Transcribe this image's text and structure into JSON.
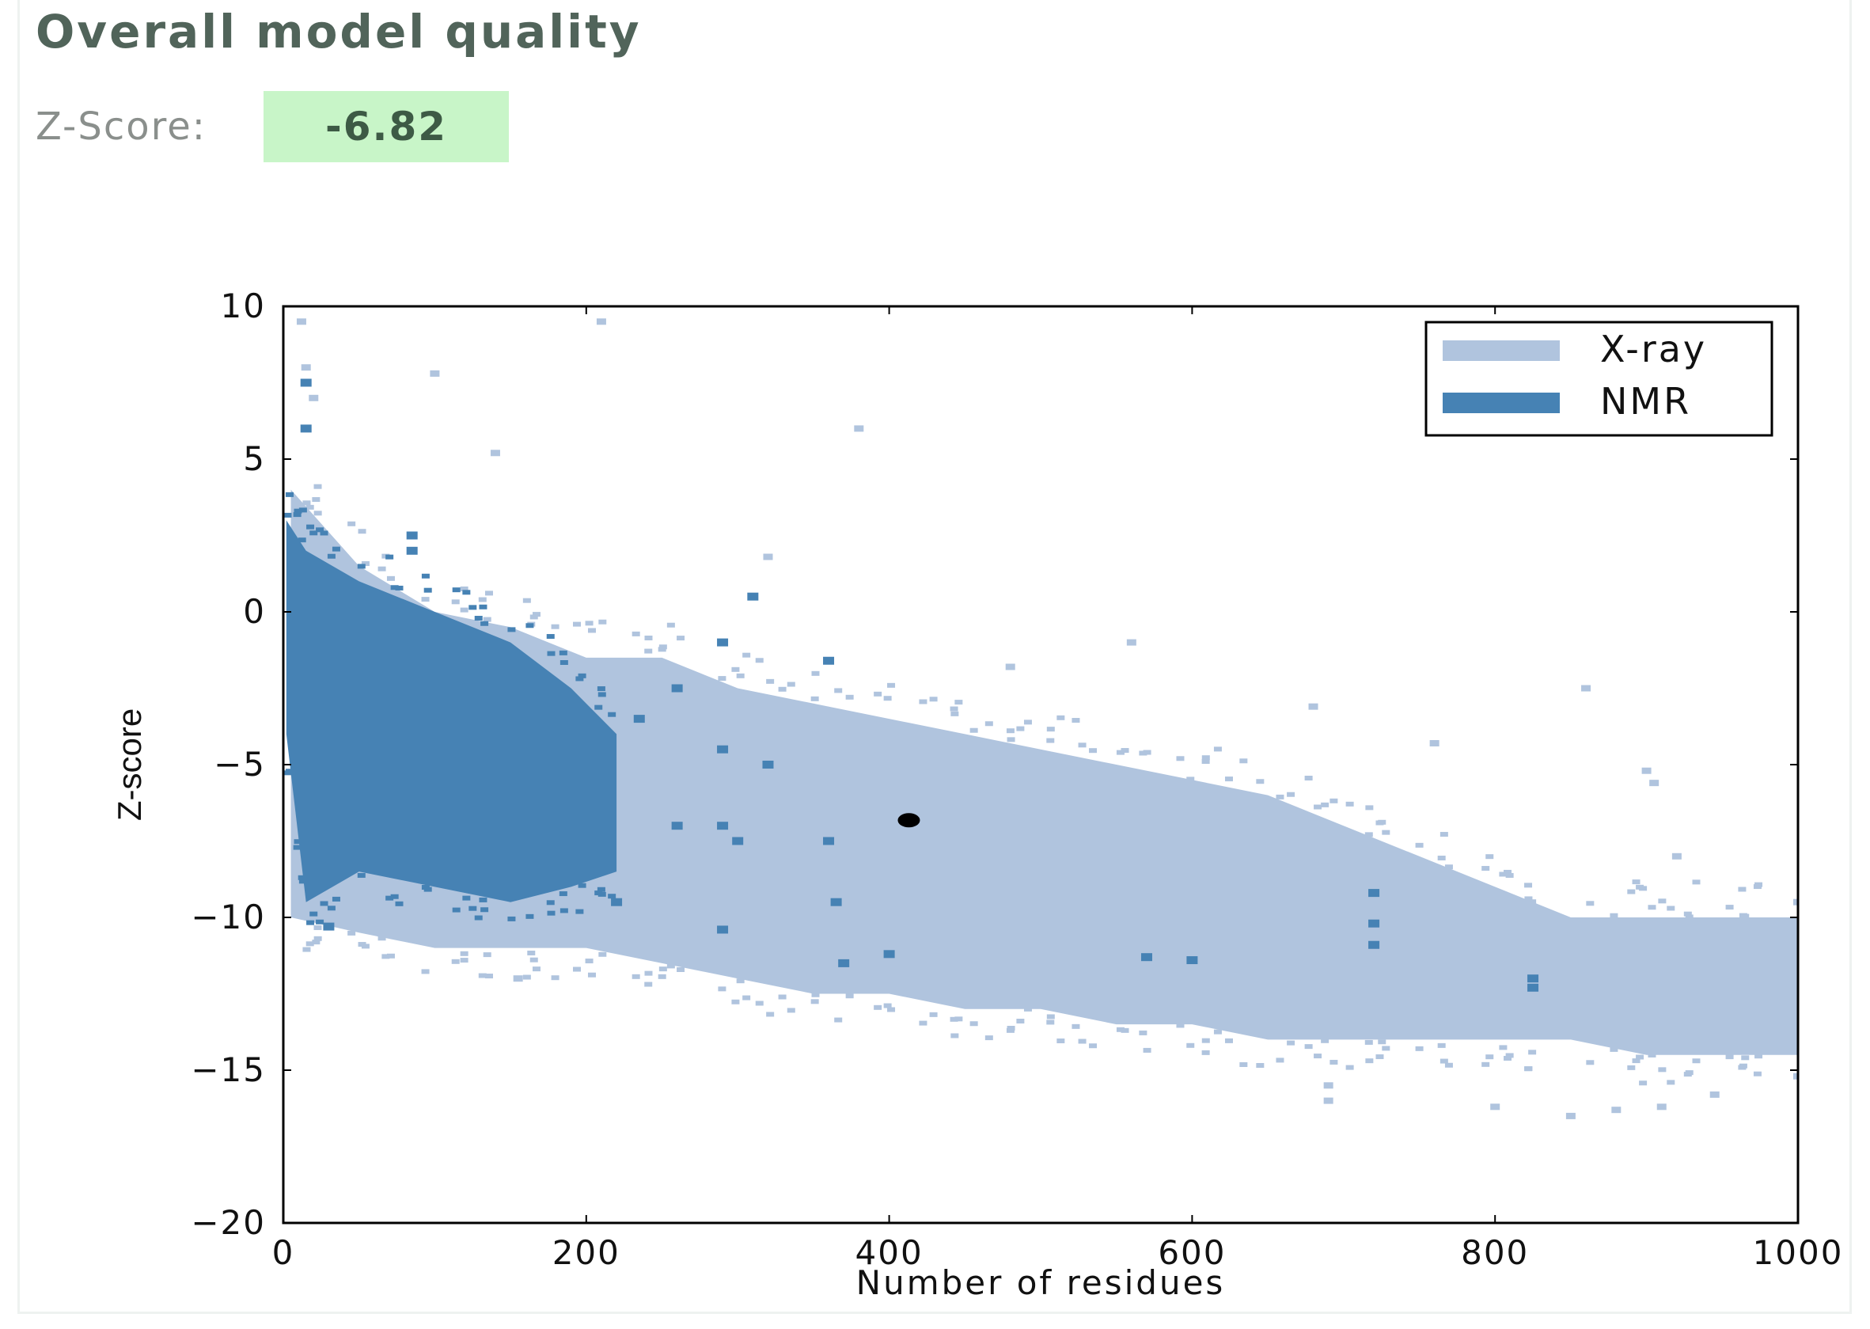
{
  "header": {
    "title": "Overall model quality",
    "zscore_label": "Z-Score:",
    "zscore_value": "-6.82"
  },
  "colors": {
    "xray": "#b0c4de",
    "nmr": "#4682b4",
    "model": "#000000",
    "badge_bg": "#c8f5c8"
  },
  "chart_data": {
    "type": "scatter",
    "xlabel": "Number of residues",
    "ylabel": "Z-score",
    "xlim": [
      0,
      1000
    ],
    "ylim": [
      -20,
      10
    ],
    "xticks": [
      0,
      200,
      400,
      600,
      800,
      1000
    ],
    "yticks": [
      10,
      5,
      0,
      -5,
      -10,
      -15,
      -20
    ],
    "x_tick_labels": [
      "0",
      "200",
      "400",
      "600",
      "800",
      "1000"
    ],
    "y_tick_labels": [
      "10",
      "5",
      "0",
      "−5",
      "−10",
      "−15",
      "−20"
    ],
    "legend": {
      "placement": "top-right",
      "entries": [
        "X-ray",
        "NMR"
      ]
    },
    "grid": false,
    "series": [
      {
        "name": "X-ray",
        "color": "#b0c4de",
        "band": [
          {
            "x": 5,
            "lo": -10,
            "hi": 4
          },
          {
            "x": 50,
            "lo": -10.5,
            "hi": 1.5
          },
          {
            "x": 100,
            "lo": -11,
            "hi": 0
          },
          {
            "x": 150,
            "lo": -11,
            "hi": -0.5
          },
          {
            "x": 200,
            "lo": -11,
            "hi": -1.5
          },
          {
            "x": 250,
            "lo": -11.5,
            "hi": -1.5
          },
          {
            "x": 300,
            "lo": -12,
            "hi": -2.5
          },
          {
            "x": 350,
            "lo": -12.5,
            "hi": -3
          },
          {
            "x": 400,
            "lo": -12.5,
            "hi": -3.5
          },
          {
            "x": 450,
            "lo": -13,
            "hi": -4
          },
          {
            "x": 500,
            "lo": -13,
            "hi": -4.5
          },
          {
            "x": 550,
            "lo": -13.5,
            "hi": -5
          },
          {
            "x": 600,
            "lo": -13.5,
            "hi": -5.5
          },
          {
            "x": 650,
            "lo": -14,
            "hi": -6
          },
          {
            "x": 700,
            "lo": -14,
            "hi": -7
          },
          {
            "x": 750,
            "lo": -14,
            "hi": -8
          },
          {
            "x": 800,
            "lo": -14,
            "hi": -9
          },
          {
            "x": 850,
            "lo": -14,
            "hi": -10
          },
          {
            "x": 900,
            "lo": -14.5,
            "hi": -10
          },
          {
            "x": 950,
            "lo": -14.5,
            "hi": -10
          },
          {
            "x": 1000,
            "lo": -14.5,
            "hi": -10
          }
        ],
        "points": [
          {
            "x": 12,
            "y": 9.5
          },
          {
            "x": 15,
            "y": 8
          },
          {
            "x": 20,
            "y": 7
          },
          {
            "x": 100,
            "y": 7.8
          },
          {
            "x": 140,
            "y": 5.2
          },
          {
            "x": 210,
            "y": 9.5
          },
          {
            "x": 380,
            "y": 6
          },
          {
            "x": 320,
            "y": 1.8
          },
          {
            "x": 480,
            "y": -1.8
          },
          {
            "x": 560,
            "y": -1
          },
          {
            "x": 680,
            "y": -3.1
          },
          {
            "x": 760,
            "y": -4.3
          },
          {
            "x": 860,
            "y": -2.5
          },
          {
            "x": 900,
            "y": -5.2
          },
          {
            "x": 905,
            "y": -5.6
          },
          {
            "x": 920,
            "y": -8
          },
          {
            "x": 1000,
            "y": -9.5
          },
          {
            "x": 1000,
            "y": -11.5
          },
          {
            "x": 995,
            "y": -13.5
          },
          {
            "x": 690,
            "y": -15.5
          },
          {
            "x": 690,
            "y": -16
          },
          {
            "x": 880,
            "y": -16.3
          },
          {
            "x": 1000,
            "y": -15.2
          },
          {
            "x": 945,
            "y": -15.8
          },
          {
            "x": 910,
            "y": -16.2
          },
          {
            "x": 155,
            "y": -12
          },
          {
            "x": 850,
            "y": -16.5
          },
          {
            "x": 800,
            "y": -16.2
          }
        ]
      },
      {
        "name": "NMR",
        "color": "#4682b4",
        "band": [
          {
            "x": 2,
            "lo": -4,
            "hi": 3
          },
          {
            "x": 15,
            "lo": -9.5,
            "hi": 2
          },
          {
            "x": 50,
            "lo": -8.5,
            "hi": 1
          },
          {
            "x": 100,
            "lo": -9,
            "hi": 0
          },
          {
            "x": 150,
            "lo": -9.5,
            "hi": -1
          },
          {
            "x": 190,
            "lo": -9,
            "hi": -2.5
          },
          {
            "x": 220,
            "lo": -8.5,
            "hi": -4
          }
        ],
        "points": [
          {
            "x": 15,
            "y": 7.5
          },
          {
            "x": 15,
            "y": 6
          },
          {
            "x": 85,
            "y": 2.5
          },
          {
            "x": 85,
            "y": 2
          },
          {
            "x": 30,
            "y": -10.3
          },
          {
            "x": 235,
            "y": -3.5
          },
          {
            "x": 260,
            "y": -2.5
          },
          {
            "x": 260,
            "y": -7
          },
          {
            "x": 290,
            "y": -4.5
          },
          {
            "x": 290,
            "y": -7
          },
          {
            "x": 290,
            "y": -10.4
          },
          {
            "x": 300,
            "y": -7.5
          },
          {
            "x": 290,
            "y": -1
          },
          {
            "x": 310,
            "y": 0.5
          },
          {
            "x": 320,
            "y": -5
          },
          {
            "x": 360,
            "y": -7.5
          },
          {
            "x": 365,
            "y": -9.5
          },
          {
            "x": 370,
            "y": -11.5
          },
          {
            "x": 360,
            "y": -1.6
          },
          {
            "x": 400,
            "y": -11.2
          },
          {
            "x": 570,
            "y": -11.3
          },
          {
            "x": 600,
            "y": -11.4
          },
          {
            "x": 720,
            "y": -10.2
          },
          {
            "x": 720,
            "y": -10.9
          },
          {
            "x": 720,
            "y": -9.2
          },
          {
            "x": 825,
            "y": -12
          },
          {
            "x": 825,
            "y": -12.3
          },
          {
            "x": 220,
            "y": -9.5
          }
        ]
      },
      {
        "name": "",
        "color": "#000000",
        "points": [
          {
            "x": 413,
            "y": -6.82
          }
        ]
      }
    ]
  }
}
